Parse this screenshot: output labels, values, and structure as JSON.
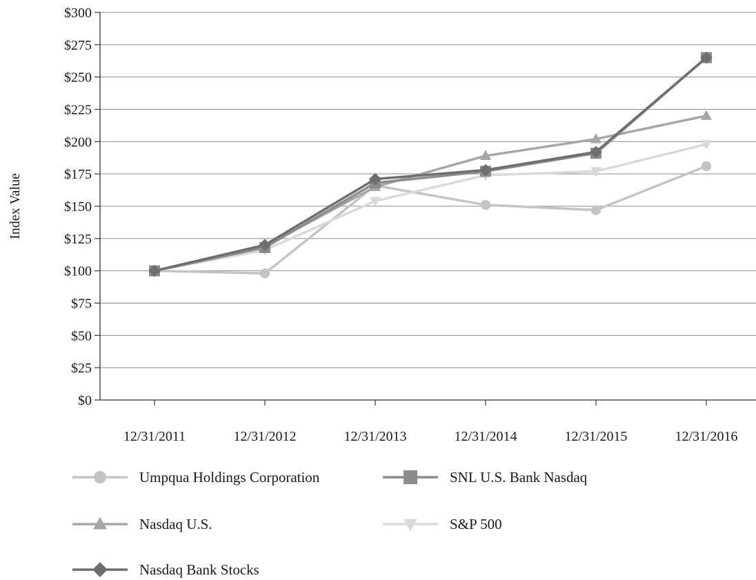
{
  "chart_data": {
    "type": "line",
    "title": "",
    "xlabel": "",
    "ylabel": "Index Value",
    "ylim": [
      0,
      300
    ],
    "y_ticks": [
      0,
      25,
      50,
      75,
      100,
      125,
      150,
      175,
      200,
      225,
      250,
      275,
      300
    ],
    "y_tick_labels": [
      "$0",
      "$25",
      "$50",
      "$75",
      "$100",
      "$125",
      "$150",
      "$175",
      "$200",
      "$225",
      "$250",
      "$275",
      "$300"
    ],
    "grid": "horizontal",
    "legend_position": "bottom",
    "categories": [
      "12/31/2011",
      "12/31/2012",
      "12/31/2013",
      "12/31/2014",
      "12/31/2015",
      "12/31/2016"
    ],
    "series": [
      {
        "name": "Umpqua Holdings Corporation",
        "marker": "circle",
        "color": "#c4c4c4",
        "values": [
          100,
          98,
          166,
          151,
          147,
          181
        ]
      },
      {
        "name": "SNL U.S. Bank Nasdaq",
        "marker": "square",
        "color": "#8c8c8c",
        "values": [
          100,
          118,
          168,
          177,
          191,
          265
        ]
      },
      {
        "name": "Nasdaq U.S.",
        "marker": "triangle-up",
        "color": "#a6a6a6",
        "values": [
          100,
          119,
          165,
          189,
          202,
          220
        ]
      },
      {
        "name": "S&P 500",
        "marker": "triangle-down",
        "color": "#d9d9d9",
        "values": [
          100,
          116,
          154,
          174,
          177,
          198
        ]
      },
      {
        "name": "Nasdaq Bank Stocks",
        "marker": "diamond",
        "color": "#6e6e6e",
        "values": [
          100,
          120,
          171,
          178,
          192,
          265
        ]
      }
    ]
  }
}
